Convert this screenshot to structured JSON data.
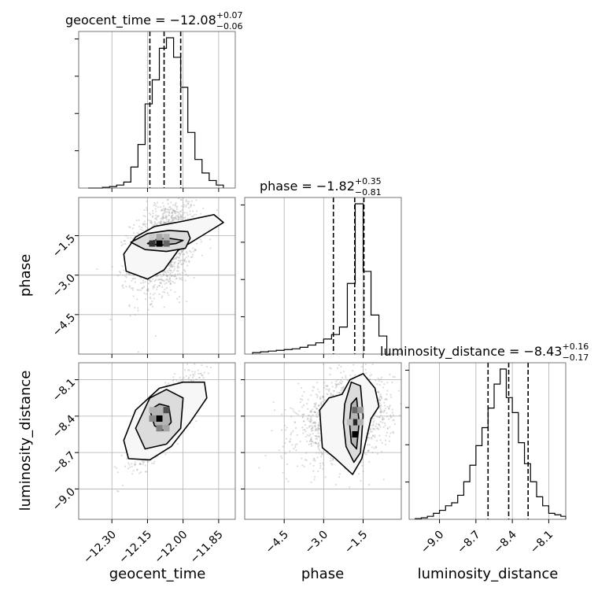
{
  "chart_data": {
    "type": "corner",
    "parameters": [
      "geocent_time",
      "phase",
      "luminosity_distance"
    ],
    "titles": [
      {
        "name": "geocent_time",
        "median": "−12.08",
        "plus": "+0.07",
        "minus": "−0.06"
      },
      {
        "name": "phase",
        "median": "−1.82",
        "plus": "+0.35",
        "minus": "−0.81"
      },
      {
        "name": "luminosity_distance",
        "median": "−8.43",
        "plus": "+0.16",
        "minus": "−0.17"
      }
    ],
    "axes": {
      "geocent_time": {
        "range": [
          -12.44,
          -11.78
        ],
        "ticks": [
          -12.3,
          -12.15,
          -12.0,
          -11.85
        ],
        "tick_labels": [
          "−12.30",
          "−12.15",
          "−12.00",
          "−11.85"
        ]
      },
      "phase": {
        "range": [
          -6.0,
          -0.05
        ],
        "ticks": [
          -4.5,
          -3.0,
          -1.5
        ],
        "tick_labels": [
          "−4.5",
          "−3.0",
          "−1.5"
        ]
      },
      "luminosity_distance": {
        "range": [
          -9.25,
          -7.96
        ],
        "ticks": [
          -9.0,
          -8.7,
          -8.4,
          -8.1
        ],
        "tick_labels": [
          "−9.0",
          "−8.7",
          "−8.4",
          "−8.1"
        ]
      }
    },
    "quantiles": {
      "geocent_time": [
        -12.14,
        -12.08,
        -12.01
      ],
      "phase": [
        -2.63,
        -1.82,
        -1.47
      ],
      "luminosity_distance": [
        -8.6,
        -8.43,
        -8.27
      ]
    },
    "histograms": {
      "geocent_time": {
        "edges": [
          -12.4,
          -12.37,
          -12.34,
          -12.31,
          -12.28,
          -12.25,
          -12.22,
          -12.19,
          -12.16,
          -12.13,
          -12.1,
          -12.07,
          -12.04,
          -12.01,
          -11.98,
          -11.95,
          -11.92,
          -11.89,
          -11.86,
          -11.83
        ],
        "counts": [
          0.0,
          0.0,
          0.005,
          0.01,
          0.02,
          0.04,
          0.14,
          0.29,
          0.56,
          0.72,
          0.93,
          1.0,
          0.87,
          0.67,
          0.37,
          0.19,
          0.1,
          0.05,
          0.02
        ]
      },
      "phase": {
        "edges": [
          -5.7,
          -5.4,
          -5.1,
          -4.8,
          -4.5,
          -4.2,
          -3.9,
          -3.6,
          -3.3,
          -3.0,
          -2.7,
          -2.4,
          -2.1,
          -1.8,
          -1.5,
          -1.2,
          -0.9,
          -0.6
        ],
        "counts": [
          0.01,
          0.015,
          0.02,
          0.025,
          0.03,
          0.035,
          0.045,
          0.06,
          0.075,
          0.1,
          0.13,
          0.18,
          0.47,
          1.0,
          0.55,
          0.26,
          0.12
        ]
      },
      "luminosity_distance": {
        "edges": [
          -9.2,
          -9.15,
          -9.1,
          -9.05,
          -9.0,
          -8.95,
          -8.9,
          -8.85,
          -8.8,
          -8.75,
          -8.7,
          -8.65,
          -8.6,
          -8.55,
          -8.5,
          -8.45,
          -8.4,
          -8.35,
          -8.3,
          -8.25,
          -8.2,
          -8.15,
          -8.1,
          -8.05,
          -8.0,
          -7.96
        ],
        "counts": [
          0.005,
          0.01,
          0.02,
          0.04,
          0.06,
          0.09,
          0.11,
          0.16,
          0.25,
          0.36,
          0.49,
          0.61,
          0.74,
          0.9,
          1.0,
          0.81,
          0.71,
          0.51,
          0.37,
          0.25,
          0.15,
          0.09,
          0.04,
          0.03,
          0.02
        ]
      }
    },
    "contours": {
      "phase_vs_geocent_time": [
        [
          [
            -12.15,
            -1.8
          ],
          [
            -12.11,
            -1.63
          ],
          [
            -12.06,
            -1.6
          ],
          [
            -12.0,
            -1.68
          ],
          [
            -12.03,
            -1.8
          ],
          [
            -12.09,
            -1.86
          ]
        ],
        [
          [
            -12.22,
            -1.75
          ],
          [
            -12.15,
            -1.42
          ],
          [
            -12.06,
            -1.3
          ],
          [
            -11.98,
            -1.35
          ],
          [
            -11.97,
            -1.6
          ],
          [
            -11.99,
            -1.98
          ],
          [
            -12.07,
            -2.1
          ],
          [
            -12.16,
            -2.03
          ]
        ],
        [
          [
            -12.25,
            -2.2
          ],
          [
            -12.2,
            -1.55
          ],
          [
            -12.12,
            -1.15
          ],
          [
            -12.0,
            -0.95
          ],
          [
            -11.87,
            -0.7
          ],
          [
            -11.83,
            -1.0
          ],
          [
            -11.92,
            -1.5
          ],
          [
            -12.02,
            -2.05
          ],
          [
            -12.08,
            -2.8
          ],
          [
            -12.15,
            -3.15
          ],
          [
            -12.24,
            -2.85
          ]
        ]
      ],
      "luminosity_distance_vs_geocent_time": [
        [
          [
            -12.14,
            -8.35
          ],
          [
            -12.1,
            -8.3
          ],
          [
            -12.06,
            -8.32
          ],
          [
            -12.05,
            -8.45
          ],
          [
            -12.08,
            -8.52
          ],
          [
            -12.12,
            -8.48
          ]
        ],
        [
          [
            -12.2,
            -8.5
          ],
          [
            -12.14,
            -8.25
          ],
          [
            -12.07,
            -8.18
          ],
          [
            -12.0,
            -8.25
          ],
          [
            -12.01,
            -8.5
          ],
          [
            -12.07,
            -8.63
          ],
          [
            -12.16,
            -8.67
          ]
        ],
        [
          [
            -12.25,
            -8.6
          ],
          [
            -12.2,
            -8.35
          ],
          [
            -12.1,
            -8.17
          ],
          [
            -12.0,
            -8.12
          ],
          [
            -11.91,
            -8.12
          ],
          [
            -11.9,
            -8.25
          ],
          [
            -11.97,
            -8.45
          ],
          [
            -12.05,
            -8.65
          ],
          [
            -12.14,
            -8.76
          ],
          [
            -12.23,
            -8.75
          ]
        ]
      ],
      "luminosity_distance_vs_phase": [
        [
          [
            -1.95,
            -8.3
          ],
          [
            -1.75,
            -8.25
          ],
          [
            -1.65,
            -8.45
          ],
          [
            -1.75,
            -8.67
          ],
          [
            -1.95,
            -8.62
          ],
          [
            -2.02,
            -8.45
          ]
        ],
        [
          [
            -2.2,
            -8.3
          ],
          [
            -1.95,
            -8.12
          ],
          [
            -1.6,
            -8.15
          ],
          [
            -1.5,
            -8.4
          ],
          [
            -1.6,
            -8.7
          ],
          [
            -1.85,
            -8.78
          ],
          [
            -2.15,
            -8.65
          ],
          [
            -2.25,
            -8.45
          ]
        ],
        [
          [
            -3.15,
            -8.35
          ],
          [
            -2.8,
            -8.25
          ],
          [
            -2.3,
            -8.22
          ],
          [
            -2.0,
            -8.1
          ],
          [
            -1.5,
            -8.05
          ],
          [
            -1.05,
            -8.17
          ],
          [
            -0.9,
            -8.32
          ],
          [
            -1.2,
            -8.42
          ],
          [
            -1.55,
            -8.75
          ],
          [
            -1.9,
            -8.88
          ],
          [
            -2.6,
            -8.74
          ],
          [
            -3.05,
            -8.66
          ]
        ]
      ]
    },
    "hist2d_cells": {
      "phase_vs_geocent_time": [
        [
          -12.13,
          -1.8,
          0.8
        ],
        [
          -12.1,
          -1.8,
          1.0
        ],
        [
          -12.07,
          -1.8,
          0.6
        ],
        [
          -12.1,
          -1.55,
          0.35
        ],
        [
          -12.07,
          -1.55,
          0.3
        ],
        [
          -12.13,
          -1.55,
          0.2
        ]
      ],
      "luminosity_distance_vs_geocent_time": [
        [
          -12.1,
          -8.42,
          1.0
        ],
        [
          -12.07,
          -8.35,
          0.7
        ],
        [
          -12.13,
          -8.42,
          0.45
        ],
        [
          -12.1,
          -8.5,
          0.5
        ],
        [
          -12.07,
          -8.5,
          0.35
        ],
        [
          -12.13,
          -8.35,
          0.3
        ]
      ],
      "luminosity_distance_vs_phase": [
        [
          -1.8,
          -8.55,
          1.0
        ],
        [
          -1.8,
          -8.45,
          0.85
        ],
        [
          -1.8,
          -8.35,
          0.6
        ],
        [
          -1.6,
          -8.35,
          0.4
        ],
        [
          -1.6,
          -8.45,
          0.3
        ],
        [
          -2.0,
          -8.45,
          0.25
        ]
      ]
    },
    "grid": true
  }
}
